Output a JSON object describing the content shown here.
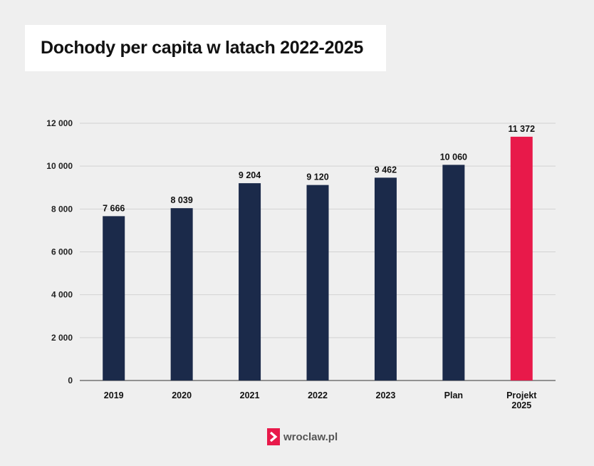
{
  "title": "Dochody per capita w latach 2022-2025",
  "logo_text": "wroclaw.pl",
  "colors": {
    "bar": "#1b2a4a",
    "highlight": "#e8194a",
    "grid": "#d2d2d2",
    "axis": "#333333"
  },
  "chart_data": {
    "type": "bar",
    "title": "Dochody per capita w latach 2022-2025",
    "categories": [
      "2019",
      "2020",
      "2021",
      "2022",
      "2023",
      "Plan",
      "Projekt 2025"
    ],
    "values": [
      7666,
      8039,
      9204,
      9120,
      9462,
      10060,
      11372
    ],
    "value_labels": [
      "7 666",
      "8 039",
      "9 204",
      "9 120",
      "9 462",
      "10 060",
      "11 372"
    ],
    "highlight_index": 6,
    "ylim": [
      0,
      12000
    ],
    "yticks": [
      0,
      2000,
      4000,
      6000,
      8000,
      10000,
      12000
    ],
    "ytick_labels": [
      "0",
      "2 000",
      "4 000",
      "6 000",
      "8 000",
      "10 000",
      "12 000"
    ],
    "grid": true,
    "xlabel": "",
    "ylabel": ""
  }
}
